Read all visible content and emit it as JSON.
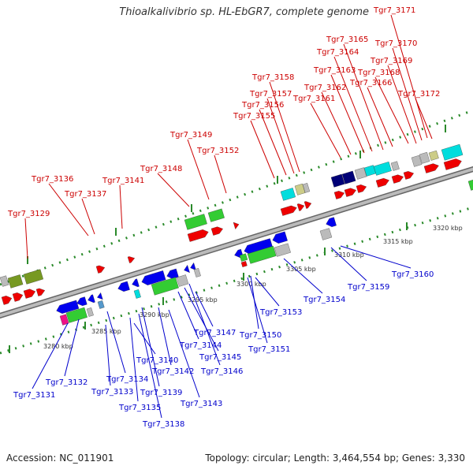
{
  "title": "Thioalkalivibrio sp. HL-EbGR7, complete genome",
  "footer": {
    "accession": "Accession: NC_011901",
    "summary": "Topology: circular; Length: 3,464,554 bp; Genes: 3,330"
  },
  "colors": {
    "forward_label": "#cc0000",
    "reverse_label": "#0000cc",
    "backbone": "#888888",
    "tick": "#2a8a2a",
    "gene_red": "#ee0000",
    "gene_blue": "#0000ee",
    "gene_green": "#33cc33",
    "gene_navy": "#000077",
    "gene_cyan": "#00dddd",
    "gene_olive": "#779922",
    "gene_gray": "#bbbbbb",
    "gene_magenta": "#ee1188",
    "gene_steel": "#5599cc",
    "gene_khaki": "#cccc88"
  },
  "scale_labels": [
    "3280 kbp",
    "3285 kbp",
    "3290 kbp",
    "3295 kbp",
    "3300 kbp",
    "3305 kbp",
    "3310 kbp",
    "3315 kbp",
    "3320 kbp"
  ],
  "forward_genes": [
    "Tgr7_3129",
    "Tgr7_3136",
    "Tgr7_3137",
    "Tgr7_3141",
    "Tgr7_3148",
    "Tgr7_3149",
    "Tgr7_3152",
    "Tgr7_3155",
    "Tgr7_3156",
    "Tgr7_3157",
    "Tgr7_3158",
    "Tgr7_3161",
    "Tgr7_3162",
    "Tgr7_3163",
    "Tgr7_3164",
    "Tgr7_3165",
    "Tgr7_3166",
    "Tgr7_3168",
    "Tgr7_3169",
    "Tgr7_3170",
    "Tgr7_3171",
    "Tgr7_3172"
  ],
  "reverse_genes": [
    "Tgr7_3131",
    "Tgr7_3132",
    "Tgr7_3133",
    "Tgr7_3134",
    "Tgr7_3135",
    "Tgr7_3138",
    "Tgr7_3139",
    "Tgr7_3140",
    "Tgr7_3142",
    "Tgr7_3143",
    "Tgr7_3144",
    "Tgr7_3145",
    "Tgr7_3146",
    "Tgr7_3147",
    "Tgr7_3150",
    "Tgr7_3151",
    "Tgr7_3153",
    "Tgr7_3154",
    "Tgr7_3159",
    "Tgr7_3160"
  ]
}
